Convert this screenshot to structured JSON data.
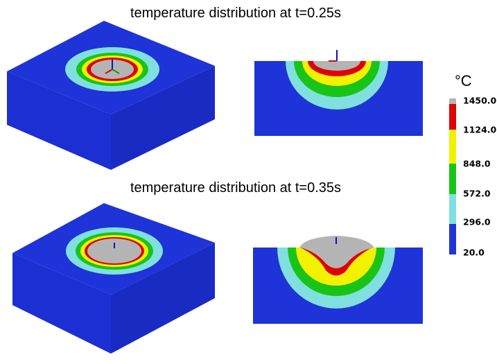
{
  "panels": [
    {
      "title": "temperature distribution at t=0.25s"
    },
    {
      "title": "temperature distribution at t=0.35s"
    }
  ],
  "legend": {
    "unit": "°C",
    "labels": [
      "1450.0",
      "1124.0",
      "848.0",
      "572.0",
      "296.0",
      "20.0"
    ]
  }
}
